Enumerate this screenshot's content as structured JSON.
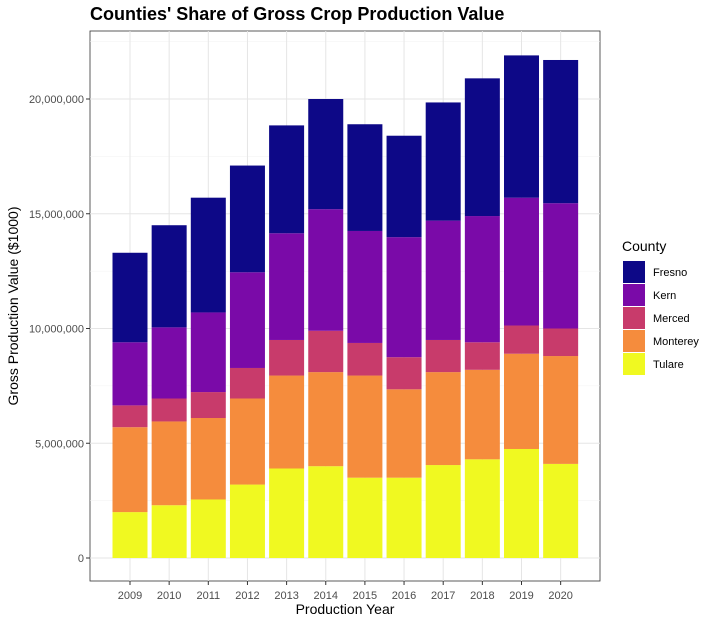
{
  "chart_data": {
    "type": "bar",
    "stacked": true,
    "title": "Counties' Share of Gross Crop Production Value",
    "xlabel": "Production Year",
    "ylabel": "Gross Production Value ($1000)",
    "categories": [
      "2009",
      "2010",
      "2011",
      "2012",
      "2013",
      "2014",
      "2015",
      "2016",
      "2017",
      "2018",
      "2019",
      "2020"
    ],
    "ylim": [
      0,
      23000000
    ],
    "yticks": [
      0,
      5000000,
      10000000,
      15000000,
      20000000
    ],
    "ytick_labels": [
      "0",
      "5,000,000",
      "10,000,000",
      "15,000,000",
      "20,000,000"
    ],
    "grid": true,
    "legend": {
      "title": "County",
      "position": "right"
    },
    "series": [
      {
        "name": "Tulare",
        "color": "#F0F921",
        "values": [
          2000000,
          2300000,
          2550000,
          3200000,
          3900000,
          4000000,
          3500000,
          3500000,
          4050000,
          4300000,
          4750000,
          4100000
        ]
      },
      {
        "name": "Monterey",
        "color": "#F58C3D",
        "values": [
          3700000,
          3650000,
          3550000,
          3750000,
          4050000,
          4100000,
          4450000,
          3850000,
          4050000,
          3900000,
          4150000,
          4700000
        ]
      },
      {
        "name": "Merced",
        "color": "#C83B6B",
        "values": [
          950000,
          1000000,
          1130000,
          1330000,
          1550000,
          1800000,
          1420000,
          1400000,
          1400000,
          1200000,
          1230000,
          1200000
        ]
      },
      {
        "name": "Kern",
        "color": "#7A0AA8",
        "values": [
          2750000,
          3100000,
          3470000,
          4170000,
          4650000,
          5300000,
          4880000,
          5230000,
          5200000,
          5500000,
          5570000,
          5460000
        ]
      },
      {
        "name": "Fresno",
        "color": "#0D0887",
        "values": [
          3900000,
          4450000,
          5000000,
          4650000,
          4700000,
          4800000,
          4650000,
          4420000,
          5150000,
          6000000,
          6200000,
          6240000
        ]
      }
    ],
    "legend_order": [
      "Fresno",
      "Kern",
      "Merced",
      "Monterey",
      "Tulare"
    ]
  }
}
